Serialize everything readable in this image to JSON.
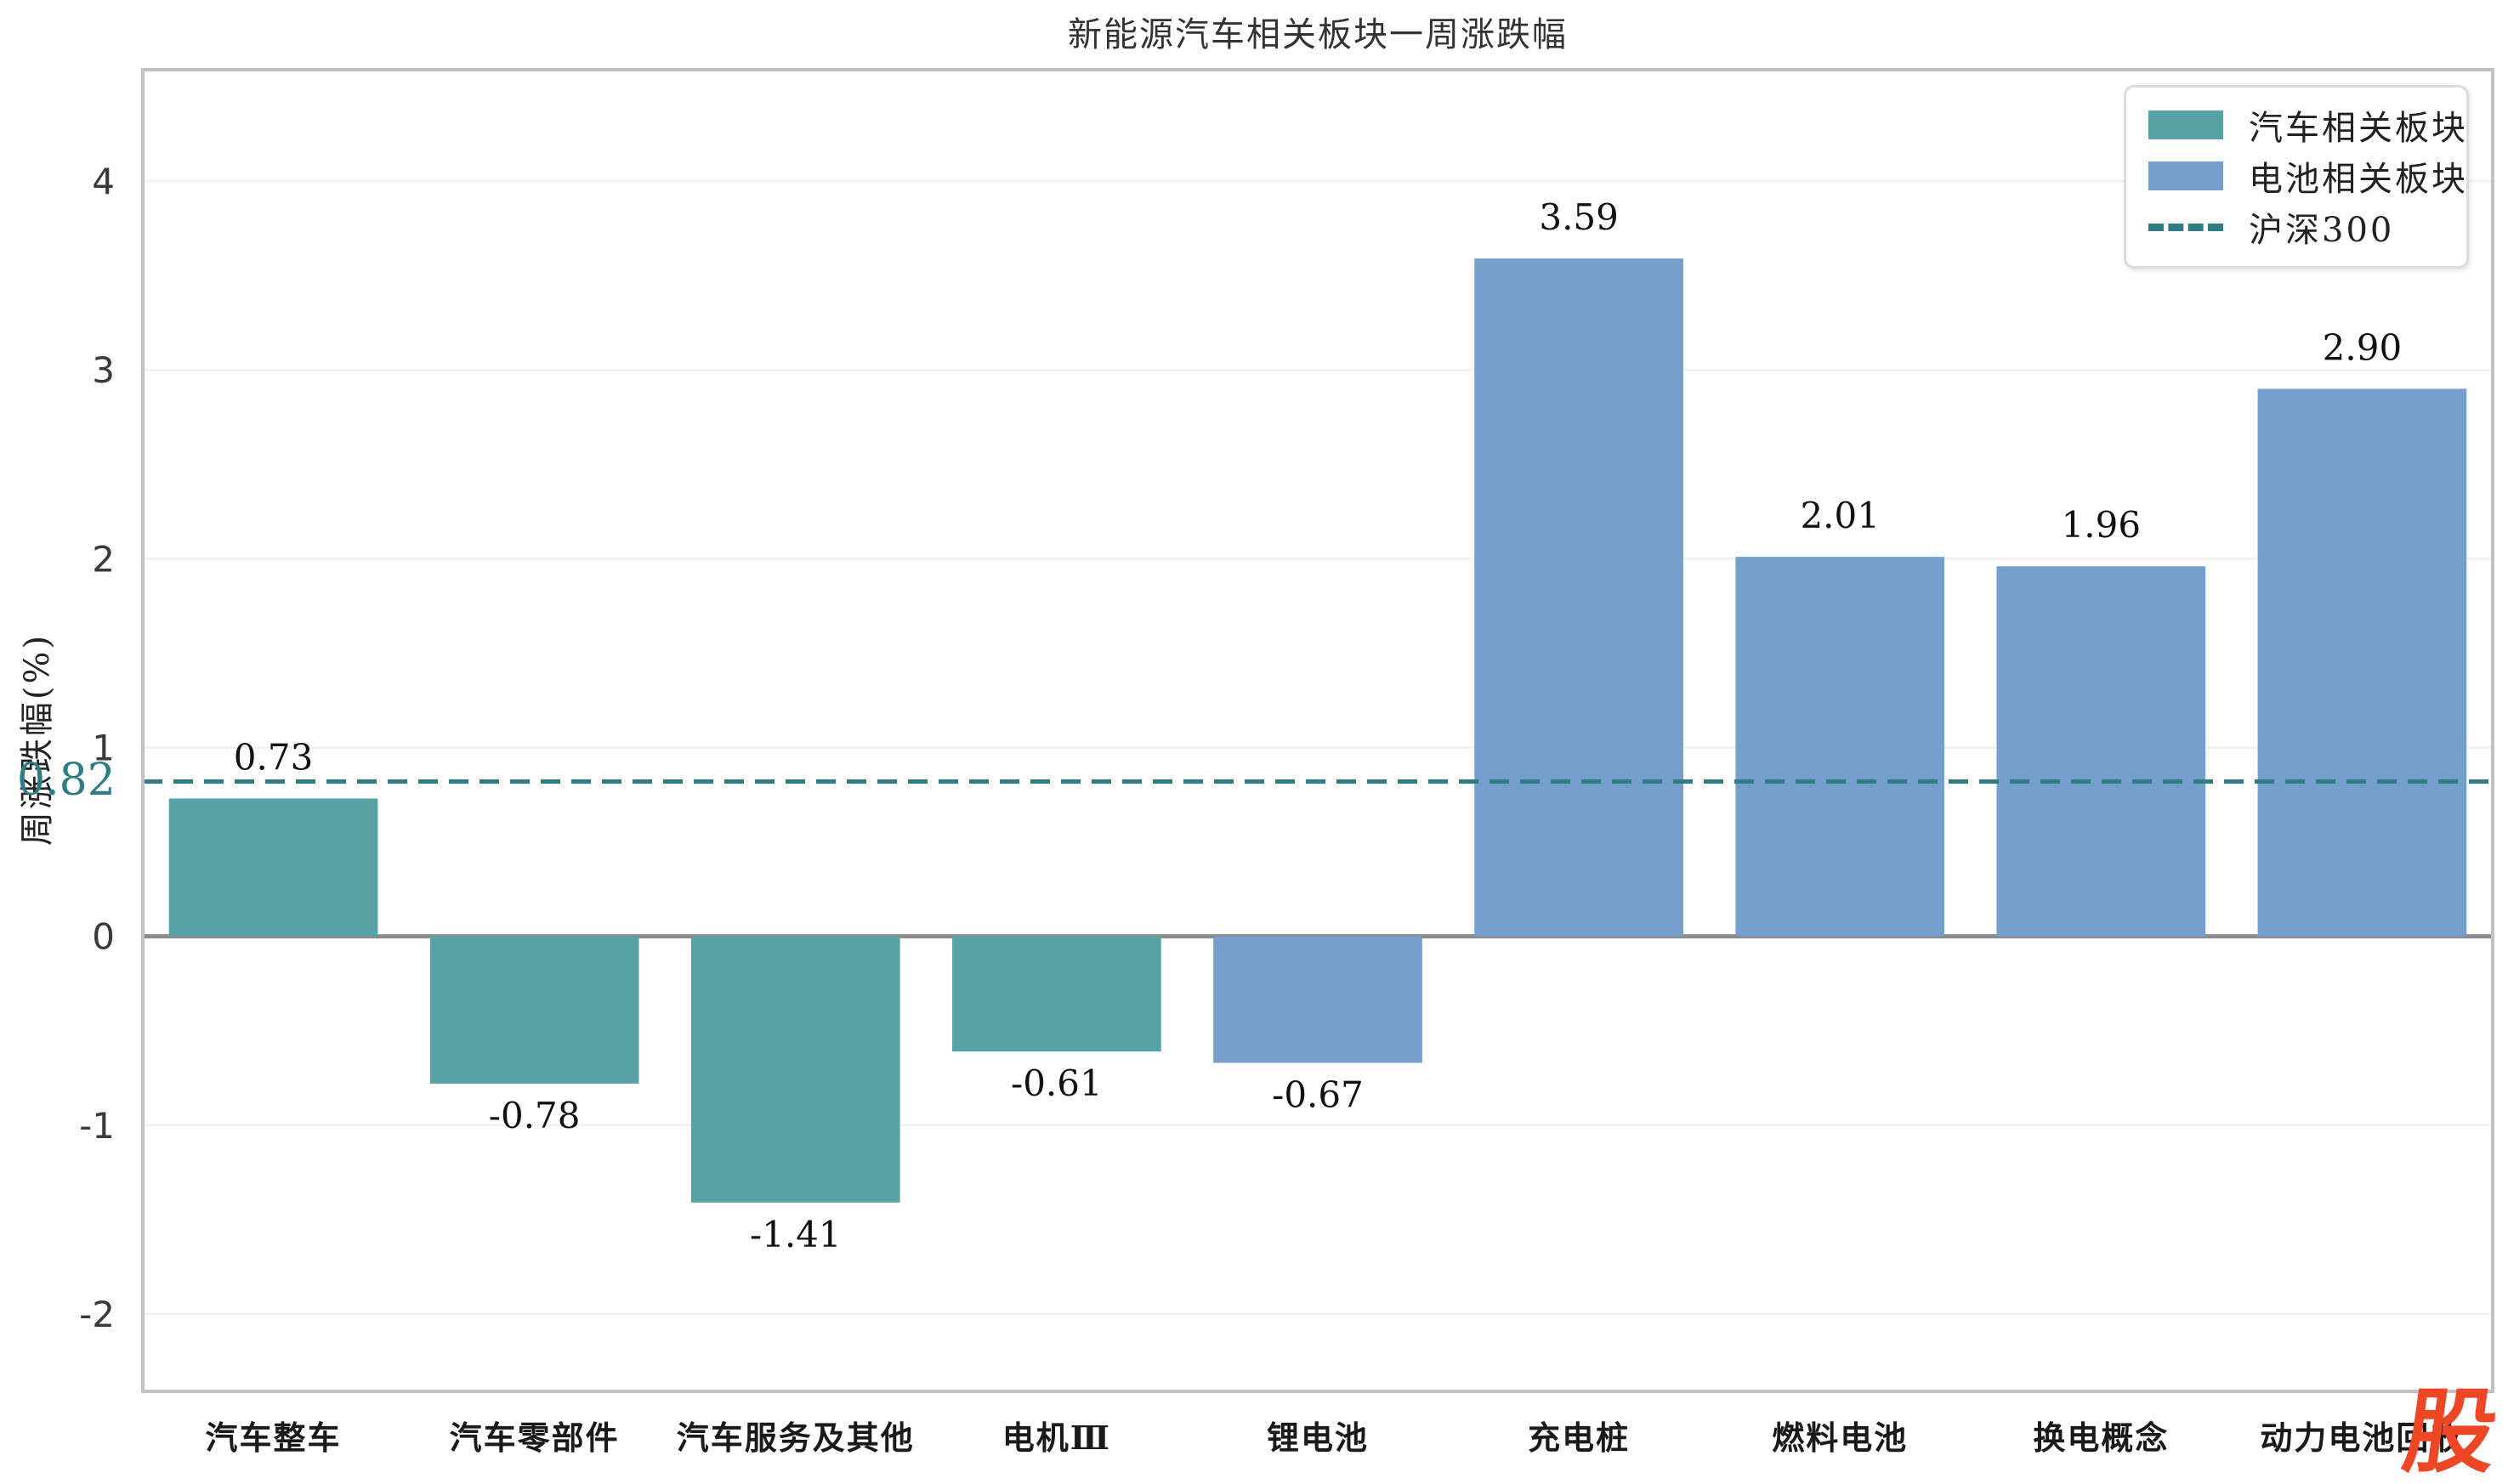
{
  "chart_data": {
    "type": "bar",
    "title": "新能源汽车相关板块一周涨跌幅",
    "ylabel": "周涨跌幅(%)",
    "xlabel": "",
    "categories": [
      "汽车整车",
      "汽车零部件",
      "汽车服务及其他",
      "电机Ⅲ",
      "锂电池",
      "充电桩",
      "燃料电池",
      "换电概念",
      "动力电池回收"
    ],
    "values": [
      0.73,
      -0.78,
      -1.41,
      -0.61,
      -0.67,
      3.59,
      2.01,
      1.96,
      2.9
    ],
    "value_labels": [
      "0.73",
      "-0.78",
      "-1.41",
      "-0.61",
      "-0.67",
      "3.59",
      "2.01",
      "1.96",
      "2.90"
    ],
    "groups": [
      0,
      0,
      0,
      0,
      1,
      1,
      1,
      1,
      1
    ],
    "series_names": [
      "汽车相关板块",
      "电池相关板块"
    ],
    "benchmark": {
      "name": "沪深300",
      "value": 0.82,
      "label": "0.82"
    },
    "ylim": [
      -2.41,
      4.59
    ],
    "yticks": [
      -2,
      -1,
      0,
      1,
      2,
      3,
      4
    ],
    "grid": true,
    "legend_position": "upper right",
    "bar_width_fraction": 0.8,
    "colors": {
      "auto_sector": "#58A2A5",
      "battery_sector": "#74A0CB",
      "benchmark": "#2F7C82",
      "zero_line": "#8C8C8C",
      "grid": "#F2F2F2",
      "spine": "#C2C2C2"
    }
  },
  "legend": {
    "items": [
      {
        "label": "汽车相关板块",
        "swatch": "patch",
        "color": "#58A2A5"
      },
      {
        "label": "电池相关板块",
        "swatch": "patch",
        "color": "#74A0CB"
      },
      {
        "label": "沪深300",
        "swatch": "dashed-line",
        "color": "#2F7C82"
      }
    ]
  },
  "watermark": {
    "text": "股",
    "color": "#EE4726"
  }
}
